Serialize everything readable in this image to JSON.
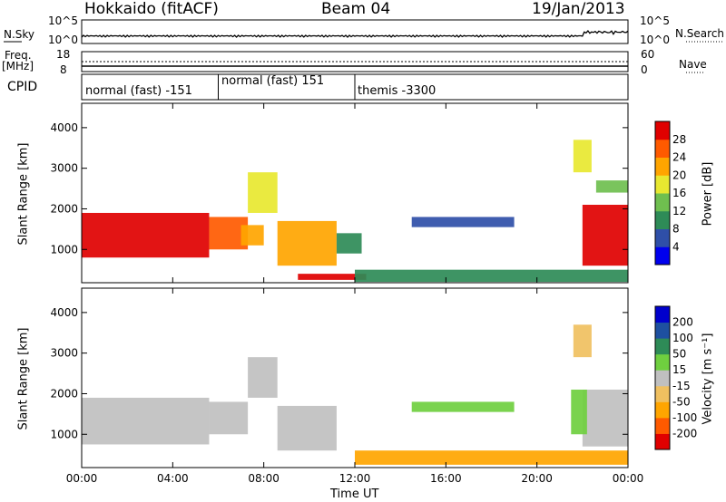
{
  "header": {
    "station": "Hokkaido (fitACF)",
    "beam": "Beam 04",
    "date": "19/Jan/2013"
  },
  "nsky_panel": {
    "label": "N.Sky",
    "right_label": "N.Search",
    "left_ticks": [
      "10^5",
      "10^0"
    ],
    "right_ticks": [
      "10^5",
      "10^0"
    ]
  },
  "freq_panel": {
    "label": "Freq.",
    "unit": "[MHz]",
    "left_ticks": [
      "18",
      "8"
    ],
    "right_ticks": [
      "60",
      "0"
    ],
    "right_label": "Nave"
  },
  "cpid_panel": {
    "label": "CPID",
    "segments": [
      {
        "text": "normal (fast) -151",
        "start_hour": 0,
        "end_hour": 6
      },
      {
        "text": "normal (fast) 151",
        "start_hour": 6,
        "end_hour": 12
      },
      {
        "text": "themis -3300",
        "start_hour": 12,
        "end_hour": 24
      }
    ]
  },
  "power_colorbar": {
    "label": "Power [dB]",
    "ticks": [
      "4",
      "8",
      "12",
      "16",
      "20",
      "24",
      "28"
    ],
    "colors": [
      "#0000ee",
      "#2f4fa8",
      "#2e8b57",
      "#6fbf4f",
      "#e8e830",
      "#ffa500",
      "#ff5a00",
      "#e00000"
    ]
  },
  "velocity_colorbar": {
    "label": "Velocity [m s⁻¹]",
    "ticks": [
      "-200",
      "-100",
      "-50",
      "-15",
      "15",
      "50",
      "100",
      "200"
    ],
    "colors": [
      "#e00000",
      "#ff5a00",
      "#ffa500",
      "#f0c060",
      "#c0c0c0",
      "#6fcf3f",
      "#2e8b57",
      "#1e50a0",
      "#0000cc"
    ]
  },
  "x_axis": {
    "title": "Time UT",
    "tick_labels": [
      "00:00",
      "04:00",
      "08:00",
      "12:00",
      "16:00",
      "20:00",
      "00:00"
    ]
  },
  "chart_data": [
    {
      "type": "heatmap",
      "quantity": "Power",
      "ylabel": "Slant Range [km]",
      "xlabel": "Time UT",
      "xlim": [
        0,
        24
      ],
      "ylim": [
        180,
        4600
      ],
      "yticks": [
        1000,
        2000,
        3000,
        4000
      ],
      "regions": [
        {
          "t0": 0.0,
          "t1": 5.6,
          "r0": 800,
          "r1": 1900,
          "value": 28
        },
        {
          "t0": 5.6,
          "t1": 7.3,
          "r0": 1000,
          "r1": 1800,
          "value": 24
        },
        {
          "t0": 7.3,
          "t1": 8.6,
          "r0": 1900,
          "r1": 2900,
          "value": 16
        },
        {
          "t0": 7.0,
          "t1": 8.0,
          "r0": 1100,
          "r1": 1600,
          "value": 20
        },
        {
          "t0": 8.6,
          "t1": 11.2,
          "r0": 600,
          "r1": 1700,
          "value": 20
        },
        {
          "t0": 11.2,
          "t1": 12.3,
          "r0": 900,
          "r1": 1400,
          "value": 8
        },
        {
          "t0": 9.5,
          "t1": 12.5,
          "r0": 250,
          "r1": 400,
          "value": 28
        },
        {
          "t0": 12.0,
          "t1": 24.0,
          "r0": 200,
          "r1": 500,
          "value": 8
        },
        {
          "t0": 14.5,
          "t1": 19.0,
          "r0": 1550,
          "r1": 1800,
          "value": 4
        },
        {
          "t0": 21.6,
          "t1": 22.4,
          "r0": 2900,
          "r1": 3700,
          "value": 16
        },
        {
          "t0": 22.0,
          "t1": 24.0,
          "r0": 600,
          "r1": 2100,
          "value": 28
        },
        {
          "t0": 22.6,
          "t1": 24.0,
          "r0": 2400,
          "r1": 2700,
          "value": 12
        }
      ]
    },
    {
      "type": "heatmap",
      "quantity": "Velocity",
      "ylabel": "Slant Range [km]",
      "xlabel": "Time UT",
      "xlim": [
        0,
        24
      ],
      "ylim": [
        180,
        4600
      ],
      "yticks": [
        1000,
        2000,
        3000,
        4000
      ],
      "regions": [
        {
          "t0": 0.0,
          "t1": 5.6,
          "r0": 750,
          "r1": 1900,
          "value": 0
        },
        {
          "t0": 5.6,
          "t1": 7.3,
          "r0": 1000,
          "r1": 1800,
          "value": 0
        },
        {
          "t0": 7.3,
          "t1": 8.6,
          "r0": 1900,
          "r1": 2900,
          "value": 0
        },
        {
          "t0": 8.6,
          "t1": 11.2,
          "r0": 600,
          "r1": 1700,
          "value": 0
        },
        {
          "t0": 12.0,
          "t1": 24.0,
          "r0": 250,
          "r1": 600,
          "value": -80
        },
        {
          "t0": 14.5,
          "t1": 19.0,
          "r0": 1550,
          "r1": 1800,
          "value": 40
        },
        {
          "t0": 21.6,
          "t1": 22.4,
          "r0": 2900,
          "r1": 3700,
          "value": -40
        },
        {
          "t0": 22.0,
          "t1": 24.0,
          "r0": 700,
          "r1": 2100,
          "value": 0
        },
        {
          "t0": 21.5,
          "t1": 22.2,
          "r0": 1000,
          "r1": 2100,
          "value": 30
        }
      ]
    }
  ]
}
